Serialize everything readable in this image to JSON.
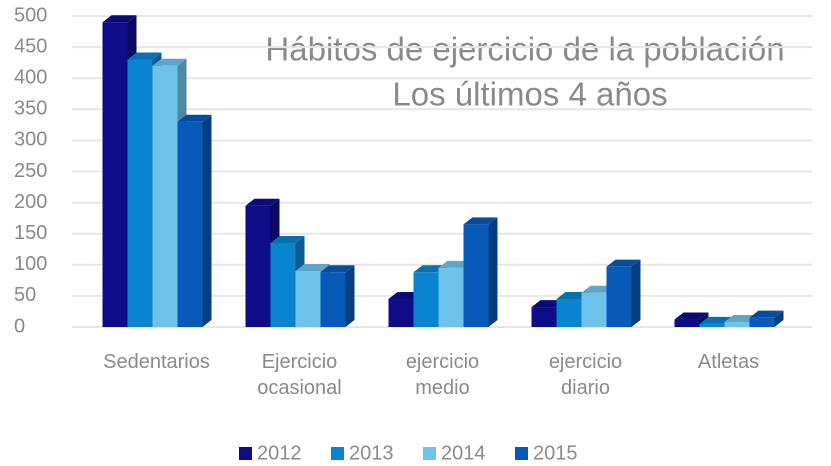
{
  "chart_data": {
    "type": "bar3d",
    "title": "Hábitos de ejercicio de la población",
    "subtitle": "Los últimos 4 años",
    "categories": [
      "Sedentarios",
      "Ejercicio ocasional",
      "ejercicio medio",
      "ejercicio diario",
      "Atletas"
    ],
    "series": [
      {
        "name": "2012",
        "color": "#0d0d8a",
        "values": [
          490,
          195,
          45,
          32,
          12
        ]
      },
      {
        "name": "2013",
        "color": "#0a84cf",
        "values": [
          430,
          135,
          88,
          45,
          5
        ]
      },
      {
        "name": "2014",
        "color": "#6ec3ea",
        "values": [
          420,
          90,
          95,
          55,
          8
        ]
      },
      {
        "name": "2015",
        "color": "#0859b8",
        "values": [
          330,
          88,
          165,
          97,
          15
        ]
      }
    ],
    "ylim": [
      0,
      500
    ],
    "yticks": [
      0,
      50,
      100,
      150,
      200,
      250,
      300,
      350,
      400,
      450,
      500
    ],
    "grid": true,
    "legend": "bottom"
  }
}
